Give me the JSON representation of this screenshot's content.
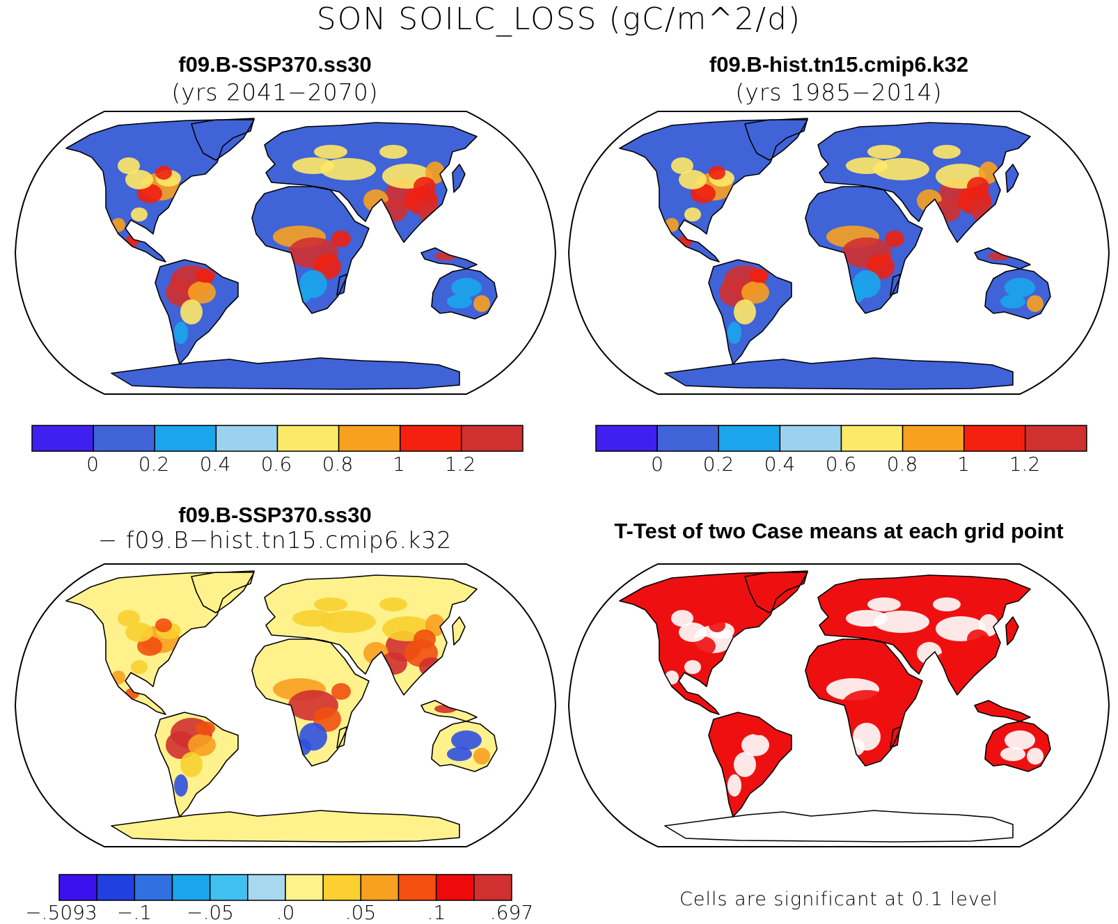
{
  "title": "SON SOILC_LOSS (gC/m^2/d)",
  "panels": [
    {
      "title": "f09.B-SSP370.ss30",
      "subtitle": "(yrs 2041−2070)",
      "land": "#4063d8",
      "accent": [
        "#ffe866",
        "#f8a020",
        "#f02010",
        "#d03030",
        "#1aa5ec"
      ]
    },
    {
      "title": "f09.B-hist.tn15.cmip6.k32",
      "subtitle": "(yrs 1985−2014)",
      "land": "#4063d8",
      "accent": [
        "#ffe866",
        "#f8a020",
        "#f02010",
        "#d03030",
        "#1aa5ec"
      ]
    },
    {
      "title": "f09.B-SSP370.ss30",
      "subtitle": "− f09.B−hist.tn15.cmip6.k32",
      "land": "#fff28c",
      "accent": [
        "#f8d030",
        "#f8a020",
        "#f05010",
        "#d03030",
        "#3050e0"
      ]
    },
    {
      "title": "T-Test of two Case means at each grid point",
      "subtitle": "",
      "land": "#ee1010",
      "accent": [
        "#ffffff",
        "#ffffff",
        "#ee1010",
        "#ee1010",
        "#ffffff"
      ]
    }
  ],
  "colorbars": [
    {
      "colors": [
        "#4020f0",
        "#4063d8",
        "#1aa5ec",
        "#9bd2f0",
        "#fce96a",
        "#f8a020",
        "#f42010",
        "#d03030"
      ],
      "labels": [
        "0",
        "0.2",
        "0.4",
        "0.6",
        "0.8",
        "1",
        "1.2"
      ]
    },
    {
      "colors": [
        "#4020f0",
        "#4063d8",
        "#1aa5ec",
        "#9bd2f0",
        "#fce96a",
        "#f8a020",
        "#f42010",
        "#d03030"
      ],
      "labels": [
        "0",
        "0.2",
        "0.4",
        "0.6",
        "0.8",
        "1",
        "1.2"
      ]
    },
    {
      "colors": [
        "#3d10f0",
        "#2040e0",
        "#3070e0",
        "#1aa5ec",
        "#40c0f0",
        "#a8d8f0",
        "#fff28c",
        "#fcd030",
        "#f8a020",
        "#f55010",
        "#ee0a0a",
        "#d03030"
      ],
      "labels": [
        "−.5093",
        "−.1",
        "−.05",
        ".0",
        ".05",
        ".1",
        ".697"
      ]
    }
  ],
  "note": "Cells are significant at 0.1 level"
}
